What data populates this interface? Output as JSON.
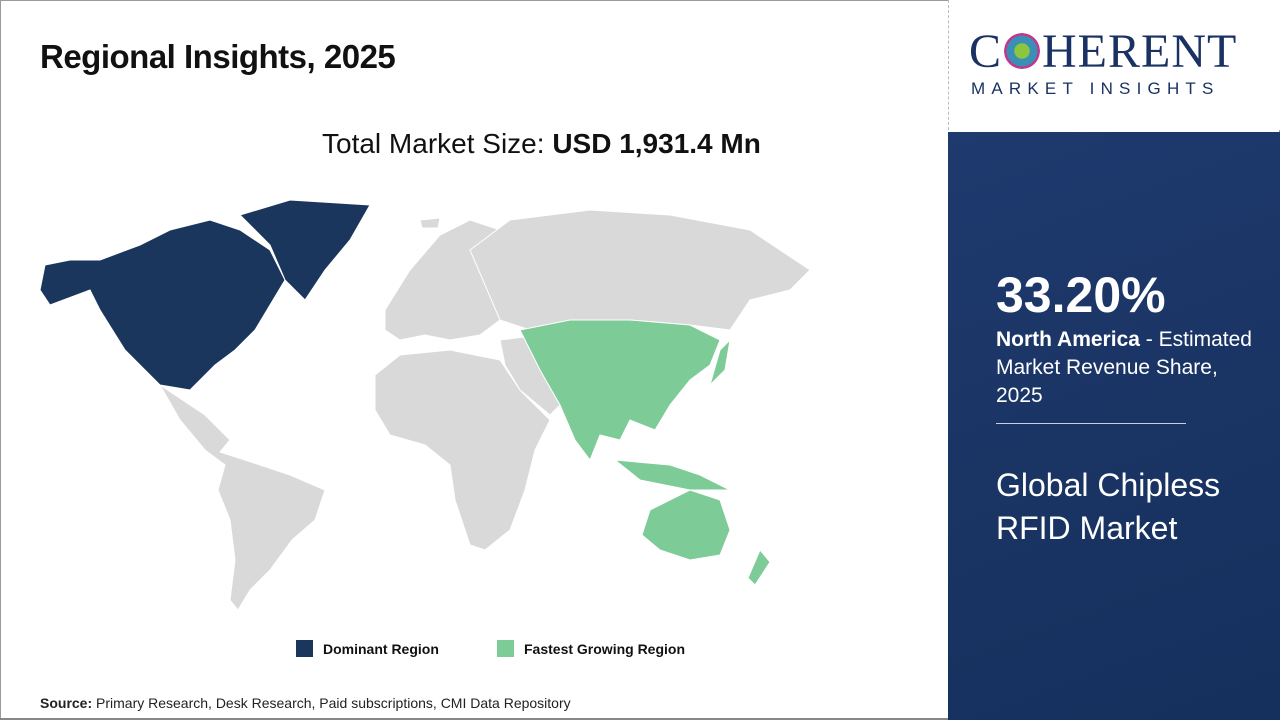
{
  "header": {
    "title": "Regional Insights, 2025"
  },
  "total_market": {
    "label": "Total Market Size:",
    "value": "USD 1,931.4 Mn"
  },
  "map": {
    "colors": {
      "dominant": "#1b365d",
      "fastest": "#7dcb96",
      "other": "#d9d9d9"
    },
    "dominant_region": "North America",
    "fastest_growing_region": "Asia Pacific"
  },
  "legend": [
    {
      "label": "Dominant Region",
      "color": "#1b365d"
    },
    {
      "label": "Fastest Growing Region",
      "color": "#7dcb96"
    }
  ],
  "source": {
    "label": "Source:",
    "text": "Primary Research, Desk Research, Paid subscriptions, CMI Data Repository"
  },
  "logo": {
    "main": "COHERENT",
    "sub": "MARKET INSIGHTS"
  },
  "panel": {
    "share": "33.20%",
    "region": "North America",
    "description": " - Estimated Market Revenue Share, 2025",
    "market_name": "Global Chipless RFID Market"
  }
}
